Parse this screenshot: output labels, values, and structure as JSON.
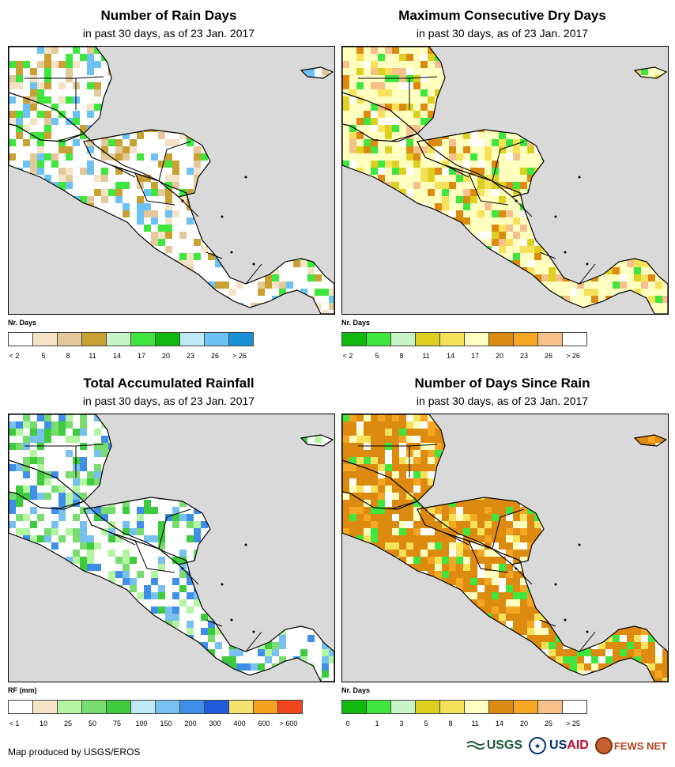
{
  "panels": [
    {
      "title": "Number of Rain Days",
      "subtitle": "in past 30 days, as of 23 Jan. 2017",
      "legend_title": "Nr. Days",
      "legend_colors": [
        "#ffffff",
        "#f5e3c8",
        "#e3c89a",
        "#c9a032",
        "#c8f5c8",
        "#3ee63e",
        "#10b810",
        "#bfeaf5",
        "#6cc2f2",
        "#1a90d6"
      ],
      "legend_labels": [
        "< 2",
        "5",
        "8",
        "11",
        "14",
        "17",
        "20",
        "23",
        "26",
        "> 26"
      ],
      "palette": [
        "#ffffff",
        "#f5e3c8",
        "#e3c89a",
        "#c9a032",
        "#3ee63e",
        "#6cc2f2"
      ]
    },
    {
      "title": "Maximum Consecutive Dry Days",
      "subtitle": "in past 30 days, as of 23 Jan. 2017",
      "legend_title": "Nr. Days",
      "legend_colors": [
        "#10b810",
        "#3ee63e",
        "#c8f5c8",
        "#ded020",
        "#f5e25a",
        "#ffffc0",
        "#dd8a10",
        "#f5a623",
        "#f5c08a",
        "#ffffff"
      ],
      "legend_labels": [
        "< 2",
        "5",
        "8",
        "11",
        "14",
        "17",
        "20",
        "23",
        "26",
        "> 26"
      ],
      "palette": [
        "#ffffc0",
        "#f5e25a",
        "#ded020",
        "#dd8a10",
        "#f5c08a",
        "#3ee63e",
        "#ffffff"
      ]
    },
    {
      "title": "Total Accumulated Rainfall",
      "subtitle": "in past 30 days, as of 23 Jan. 2017",
      "legend_title": "RF (mm)",
      "legend_colors": [
        "#ffffff",
        "#f5e3c8",
        "#b3f5a0",
        "#78dc6e",
        "#3ecc3e",
        "#bfeaf5",
        "#78c0f0",
        "#3f8ee8",
        "#1e5adc",
        "#f5e270",
        "#f5a020",
        "#f0461e"
      ],
      "legend_labels": [
        "< 1",
        "10",
        "25",
        "50",
        "75",
        "100",
        "150",
        "200",
        "300",
        "400",
        "600",
        "> 600"
      ],
      "palette": [
        "#ffffff",
        "#b3f5a0",
        "#78dc6e",
        "#3ecc3e",
        "#78c0f0",
        "#3f8ee8"
      ]
    },
    {
      "title": "Number of Days Since Rain",
      "subtitle": "in past 30 days, as of 23 Jan. 2017",
      "legend_title": "Nr. Days",
      "legend_colors": [
        "#10b810",
        "#3ee63e",
        "#c8f5c8",
        "#ded020",
        "#f5e25a",
        "#ffffc0",
        "#dd8a10",
        "#f5a623",
        "#f5c08a",
        "#ffffff"
      ],
      "legend_labels": [
        "0",
        "1",
        "3",
        "5",
        "8",
        "11",
        "14",
        "20",
        "25",
        "> 25"
      ],
      "palette": [
        "#dd8a10",
        "#f5a623",
        "#ffffc0",
        "#f5e25a",
        "#ffffff",
        "#3ee63e"
      ]
    }
  ],
  "footer": {
    "credit": "Map produced by USGS/EROS",
    "logos": {
      "usgs": "USGS",
      "usaid_a": "US",
      "usaid_b": "AID",
      "fews": "FEWS NET"
    }
  }
}
